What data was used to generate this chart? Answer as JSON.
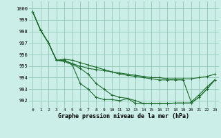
{
  "xlabel": "Graphe pression niveau de la mer (hPa)",
  "xlim": [
    -0.5,
    23.5
  ],
  "ylim": [
    991.4,
    1000.6
  ],
  "yticks": [
    992,
    993,
    994,
    995,
    996,
    997,
    998,
    999,
    1000
  ],
  "xticks": [
    0,
    1,
    2,
    3,
    4,
    5,
    6,
    7,
    8,
    9,
    10,
    11,
    12,
    13,
    14,
    15,
    16,
    17,
    18,
    19,
    20,
    21,
    22,
    23
  ],
  "background_color": "#cceee8",
  "grid_color": "#99ccbb",
  "line_color": "#1a6b2a",
  "s1": [
    999.7,
    998.1,
    997.0,
    995.5,
    995.5,
    995.2,
    995.0,
    994.8,
    994.7,
    994.6,
    994.5,
    994.4,
    994.3,
    994.2,
    994.1,
    994.0,
    994.0,
    993.9,
    993.9,
    993.9,
    993.9,
    994.0,
    994.1,
    994.3
  ],
  "s2": [
    999.7,
    998.1,
    997.0,
    995.5,
    995.5,
    995.2,
    994.8,
    994.3,
    993.5,
    993.0,
    992.5,
    992.3,
    992.2,
    992.0,
    991.75,
    991.75,
    991.75,
    991.75,
    991.8,
    991.8,
    991.8,
    992.3,
    993.0,
    993.8
  ],
  "s3": [
    999.7,
    998.1,
    997.0,
    995.5,
    995.4,
    995.1,
    993.5,
    993.0,
    992.3,
    992.1,
    992.1,
    992.0,
    992.2,
    991.75,
    991.75,
    991.75,
    991.75,
    991.75,
    991.8,
    991.8,
    991.8,
    992.3,
    993.0,
    993.8
  ],
  "s4": [
    999.7,
    998.1,
    997.0,
    995.5,
    995.6,
    995.5,
    995.3,
    995.1,
    994.9,
    994.7,
    994.5,
    994.3,
    994.2,
    994.1,
    994.0,
    993.9,
    993.8,
    993.8,
    993.8,
    993.8,
    991.9,
    992.5,
    993.2,
    993.8
  ]
}
